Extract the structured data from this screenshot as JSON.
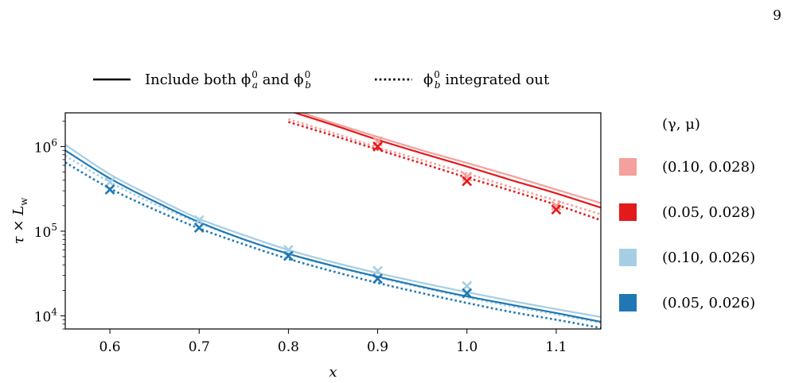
{
  "page": {
    "number": "9"
  },
  "chart_data": {
    "type": "line",
    "xlabel": "x",
    "ylabel": "τ × L_w",
    "ylabel_main": "τ × L",
    "ylabel_sub": "w",
    "xlim": [
      0.55,
      1.15
    ],
    "ylim": [
      7000,
      2500000
    ],
    "yscale": "log",
    "x_ticks": [
      0.6,
      0.7,
      0.8,
      0.9,
      1.0,
      1.1
    ],
    "x_tick_labels": [
      "0.6",
      "0.7",
      "0.8",
      "0.9",
      "1.0",
      "1.1"
    ],
    "y_ticks": [
      10000,
      100000,
      1000000
    ],
    "y_tick_labels": [
      {
        "base": "10",
        "exp": "4"
      },
      {
        "base": "10",
        "exp": "5"
      },
      {
        "base": "10",
        "exp": "6"
      }
    ],
    "style_legend": [
      {
        "style": "solid",
        "label": "Include both ϕ",
        "sup1": "0",
        "sub1": "a",
        "mid": " and ϕ",
        "sup2": "0",
        "sub2": "b"
      },
      {
        "style": "dotted",
        "label": "ϕ",
        "sup1": "0",
        "sub1": "b",
        "mid": " integrated out"
      }
    ],
    "legend_title": "(γ, μ)",
    "legend_position": "right",
    "series": [
      {
        "name": "(0.10, 0.028)",
        "color": "#f4a09c",
        "solid": {
          "x": [
            0.8,
            0.85,
            0.9,
            0.95,
            1.0,
            1.05,
            1.1,
            1.15
          ],
          "y": [
            2850000,
            1900000,
            1300000,
            900000,
            640000,
            450000,
            310000,
            215000
          ]
        },
        "dotted": {
          "x": [
            0.8,
            0.85,
            0.9,
            0.95,
            1.0,
            1.05,
            1.1,
            1.15
          ],
          "y": [
            2100000,
            1450000,
            980000,
            690000,
            480000,
            330000,
            230000,
            158000
          ]
        },
        "markers": {
          "x": [
            0.9,
            1.0,
            1.1
          ],
          "y": [
            1150000,
            440000,
            200000
          ]
        }
      },
      {
        "name": "(0.05, 0.028)",
        "color": "#e31a1c",
        "solid": {
          "x": [
            0.8,
            0.85,
            0.9,
            0.95,
            1.0,
            1.05,
            1.1,
            1.15
          ],
          "y": [
            2650000,
            1800000,
            1200000,
            830000,
            580000,
            400000,
            280000,
            190000
          ]
        },
        "dotted": {
          "x": [
            0.8,
            0.85,
            0.9,
            0.95,
            1.0,
            1.05,
            1.1,
            1.15
          ],
          "y": [
            1950000,
            1350000,
            920000,
            630000,
            430000,
            300000,
            205000,
            135000
          ]
        },
        "markers": {
          "x": [
            0.9,
            1.0,
            1.1
          ],
          "y": [
            1000000,
            390000,
            180000
          ]
        }
      },
      {
        "name": "(0.10, 0.026)",
        "color": "#a6cee3",
        "solid": {
          "x": [
            0.55,
            0.6,
            0.65,
            0.7,
            0.75,
            0.8,
            0.85,
            0.9,
            0.95,
            1.0,
            1.05,
            1.1,
            1.15
          ],
          "y": [
            1050000,
            470000,
            250000,
            140000,
            90000,
            60000,
            43000,
            32000,
            24500,
            19000,
            15000,
            12000,
            9700
          ]
        },
        "dotted": {
          "x": [
            0.55,
            0.6,
            0.65,
            0.7,
            0.75,
            0.8,
            0.85,
            0.9,
            0.95,
            1.0,
            1.05,
            1.1,
            1.15
          ],
          "y": [
            780000,
            380000,
            210000,
            125000,
            80000,
            54000,
            38500,
            28500,
            21500,
            16500,
            13000,
            10400,
            8300
          ]
        },
        "markers": {
          "x": [
            0.6,
            0.7,
            0.8,
            0.9,
            1.0
          ],
          "y": [
            380000,
            135000,
            60000,
            34000,
            22500
          ]
        }
      },
      {
        "name": "(0.05, 0.026)",
        "color": "#1f78b4",
        "solid": {
          "x": [
            0.55,
            0.6,
            0.65,
            0.7,
            0.75,
            0.8,
            0.85,
            0.9,
            0.95,
            1.0,
            1.05,
            1.1,
            1.15
          ],
          "y": [
            900000,
            420000,
            225000,
            128000,
            80000,
            54000,
            39000,
            29000,
            22000,
            17000,
            13500,
            10800,
            8500
          ]
        },
        "dotted": {
          "x": [
            0.55,
            0.6,
            0.65,
            0.7,
            0.75,
            0.8,
            0.85,
            0.9,
            0.95,
            1.0,
            1.05,
            1.1,
            1.15
          ],
          "y": [
            650000,
            320000,
            180000,
            108000,
            70000,
            47000,
            33500,
            24500,
            18500,
            14200,
            11100,
            9000,
            7200
          ]
        },
        "markers": {
          "x": [
            0.6,
            0.7,
            0.8,
            0.9,
            1.0
          ],
          "y": [
            310000,
            110000,
            51000,
            27500,
            18500
          ]
        }
      }
    ]
  }
}
